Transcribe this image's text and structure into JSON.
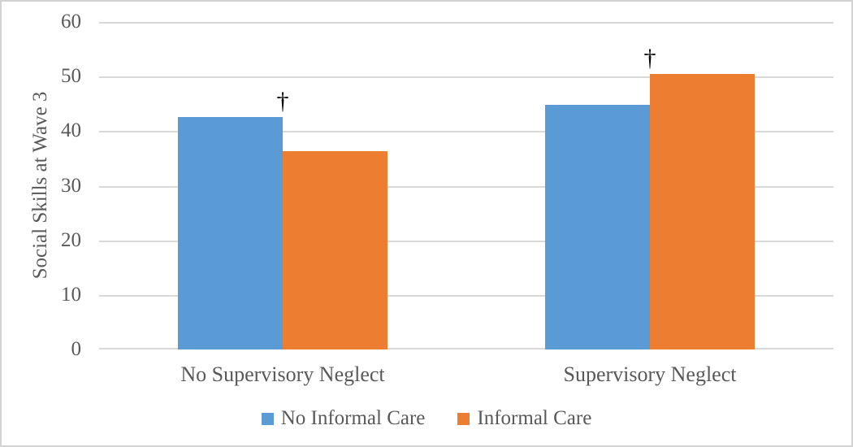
{
  "chart_data": {
    "type": "bar",
    "title": "",
    "xlabel": "",
    "ylabel": "Social Skills at Wave 3",
    "ylim": [
      0,
      60
    ],
    "yticks": [
      0,
      10,
      20,
      30,
      40,
      50,
      60
    ],
    "grid": true,
    "legend_position": "bottom",
    "categories": [
      "No Supervisory Neglect",
      "Supervisory Neglect"
    ],
    "series": [
      {
        "name": "No Informal Care",
        "color": "#5B9BD5",
        "values": [
          42.6,
          44.8
        ]
      },
      {
        "name": "Informal Care",
        "color": "#ED7D31",
        "values": [
          36.3,
          50.4
        ]
      }
    ],
    "annotations": [
      {
        "symbol": "†",
        "category_index": 0,
        "meaning": "significance-marker"
      },
      {
        "symbol": "†",
        "category_index": 1,
        "meaning": "significance-marker"
      }
    ]
  },
  "colors": {
    "bar_blue": "#5B9BD5",
    "bar_orange": "#ED7D31",
    "gridline": "#D9D9D9",
    "text": "#595959",
    "annotation": "#000000",
    "figure_border": "#D3D3D3",
    "background": "#FFFFFF"
  }
}
